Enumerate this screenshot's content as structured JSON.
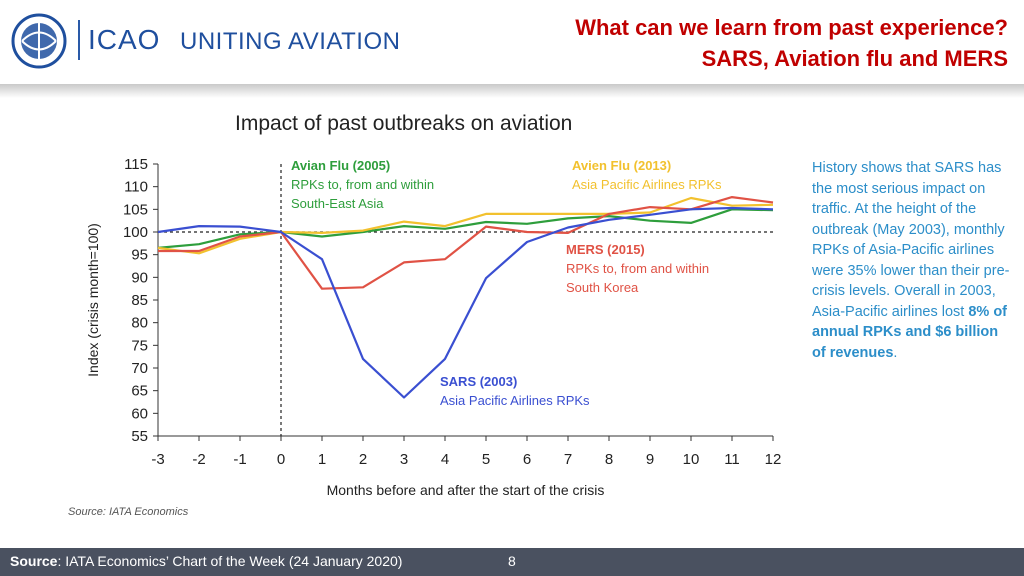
{
  "header": {
    "org": "ICAO",
    "tagline": "UNITING AVIATION",
    "title_line1": "What can we learn from past experience?",
    "title_line2": "SARS, Aviation flu and MERS"
  },
  "note": {
    "text_part1": "History shows that SARS has the most serious impact on traffic. At the height of the outbreak (May 2003), monthly RPKs of Asia-Pacific airlines were 35% lower than their pre-crisis levels. Overall in 2003, Asia-Pacific airlines lost ",
    "text_bold": "8% of annual RPKs and $6 billion of revenues",
    "text_end": "."
  },
  "source_small": "Source: IATA Economics",
  "footer": {
    "source_label": "Source",
    "source_text": ": IATA Economics’ Chart of the Week (24 January 2020)",
    "page": "8"
  },
  "chart_data": {
    "type": "line",
    "title": "Impact of past outbreaks on aviation",
    "xlabel": "Months before and after the start of the crisis",
    "ylabel": "Index (crisis month=100)",
    "x": [
      -3,
      -2,
      -1,
      0,
      1,
      2,
      3,
      4,
      5,
      6,
      7,
      8,
      9,
      10,
      11,
      12
    ],
    "xlim": [
      -3,
      12
    ],
    "ylim": [
      55,
      115
    ],
    "yticks": [
      55,
      60,
      65,
      70,
      75,
      80,
      85,
      90,
      95,
      100,
      105,
      110,
      115
    ],
    "reference_line": 100,
    "crisis_line_x": 0,
    "series": [
      {
        "name": "Avian Flu (2005)",
        "color": "#2e9e3c",
        "values": [
          96.5,
          97.3,
          99.5,
          100,
          99.0,
          100.0,
          101.3,
          100.7,
          102.2,
          101.8,
          103.0,
          103.5,
          102.5,
          102.0,
          105.0,
          104.8
        ]
      },
      {
        "name": "Avien Flu (2013)",
        "color": "#f2c12e",
        "values": [
          96.5,
          95.3,
          98.5,
          100,
          99.8,
          100.3,
          102.3,
          101.3,
          104.0,
          104.0,
          104.0,
          104.0,
          104.3,
          107.5,
          105.8,
          106.0
        ]
      },
      {
        "name": "MERS (2015)",
        "color": "#e05245",
        "values": [
          95.8,
          95.8,
          99.0,
          100,
          87.5,
          87.8,
          93.3,
          94.0,
          101.2,
          100.0,
          99.8,
          104.0,
          105.5,
          105.0,
          107.7,
          106.5
        ]
      },
      {
        "name": "SARS (2003)",
        "color": "#3a4fd1",
        "values": [
          100,
          101.3,
          101.2,
          100,
          94.0,
          72.0,
          63.5,
          72.0,
          89.8,
          97.8,
          101.0,
          102.7,
          103.8,
          105.0,
          105.3,
          105.0
        ]
      }
    ],
    "annotations": [
      {
        "series": "Avian Flu (2005)",
        "title": "Avian Flu (2005)",
        "lines": [
          "RPKs to, from and within",
          "South-East Asia"
        ]
      },
      {
        "series": "Avien Flu (2013)",
        "title": "Avien Flu (2013)",
        "lines": [
          "Asia Pacific Airlines RPKs"
        ]
      },
      {
        "series": "MERS (2015)",
        "title": "MERS (2015)",
        "lines": [
          "RPKs to, from and within",
          "South Korea"
        ]
      },
      {
        "series": "SARS (2003)",
        "title": "SARS (2003)",
        "lines": [
          "Asia Pacific Airlines RPKs"
        ]
      }
    ]
  }
}
